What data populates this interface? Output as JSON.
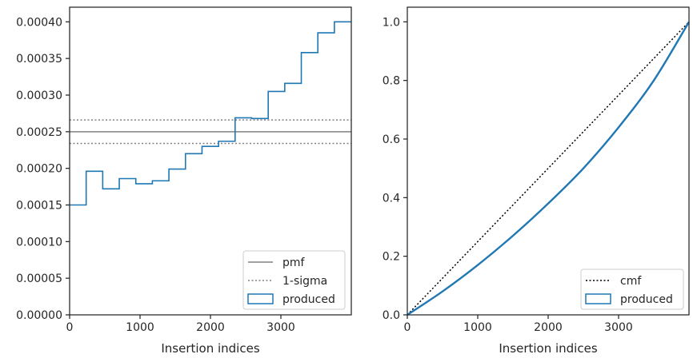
{
  "chart_data": [
    {
      "type": "line",
      "title": "",
      "xlabel": "Insertion indices",
      "ylabel": "",
      "xlim": [
        0,
        4000
      ],
      "ylim": [
        0,
        0.00042
      ],
      "xticks": [
        0,
        1000,
        2000,
        3000
      ],
      "xtick_labels": [
        "0",
        "1000",
        "2000",
        "3000"
      ],
      "yticks": [
        0,
        5e-05,
        0.0001,
        0.00015,
        0.0002,
        0.00025,
        0.0003,
        0.00035,
        0.0004
      ],
      "ytick_labels": [
        "0.00000",
        "0.00005",
        "0.00010",
        "0.00015",
        "0.00020",
        "0.00025",
        "0.00030",
        "0.00035",
        "0.00040"
      ],
      "grid": false,
      "legend_position": "bottom-right",
      "legend": [
        "pmf",
        "1-sigma",
        "produced"
      ],
      "reference_lines": [
        {
          "name": "pmf",
          "y": 0.00025,
          "style": "solid",
          "color": "#808080"
        },
        {
          "name": "1-sigma",
          "y": 0.000266,
          "style": "dotted",
          "color": "#808080"
        },
        {
          "name": "1-sigma",
          "y": 0.000234,
          "style": "dotted",
          "color": "#808080"
        }
      ],
      "series": [
        {
          "name": "produced",
          "kind": "step-histogram",
          "color": "#1f77b4",
          "bin_edges": [
            0,
            235,
            470,
            705,
            940,
            1175,
            1410,
            1645,
            1880,
            2115,
            2350,
            2585,
            2820,
            3055,
            3290,
            3525,
            3760,
            4000
          ],
          "values": [
            0.00015,
            0.000196,
            0.000172,
            0.000186,
            0.000179,
            0.000183,
            0.000199,
            0.00022,
            0.00023,
            0.000237,
            0.000269,
            0.000268,
            0.000305,
            0.000316,
            0.000358,
            0.000385,
            0.0004
          ]
        }
      ]
    },
    {
      "type": "line",
      "title": "",
      "xlabel": "Insertion indices",
      "ylabel": "",
      "xlim": [
        0,
        4000
      ],
      "ylim": [
        0,
        1.05
      ],
      "xticks": [
        0,
        1000,
        2000,
        3000
      ],
      "xtick_labels": [
        "0",
        "1000",
        "2000",
        "3000"
      ],
      "yticks": [
        0,
        0.2,
        0.4,
        0.6,
        0.8,
        1.0
      ],
      "ytick_labels": [
        "0.0",
        "0.2",
        "0.4",
        "0.6",
        "0.8",
        "1.0"
      ],
      "grid": false,
      "legend_position": "bottom-right",
      "legend": [
        "cmf",
        "produced"
      ],
      "series": [
        {
          "name": "cmf",
          "style": "dotted",
          "color": "#000000",
          "x": [
            0,
            4000
          ],
          "y": [
            0,
            1.0
          ]
        },
        {
          "name": "produced",
          "style": "solid",
          "color": "#1f77b4",
          "x": [
            0,
            500,
            1000,
            1500,
            2000,
            2500,
            3000,
            3500,
            4000
          ],
          "y": [
            0,
            0.08,
            0.17,
            0.27,
            0.38,
            0.5,
            0.64,
            0.8,
            1.0
          ]
        }
      ]
    }
  ]
}
